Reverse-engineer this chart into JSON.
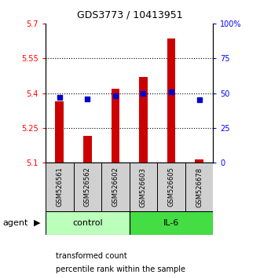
{
  "title": "GDS3773 / 10413951",
  "samples": [
    "GSM526561",
    "GSM526562",
    "GSM526602",
    "GSM526603",
    "GSM526605",
    "GSM526678"
  ],
  "bar_values": [
    5.365,
    5.215,
    5.42,
    5.47,
    5.635,
    5.115
  ],
  "bar_bottom": 5.1,
  "percentile_values": [
    47,
    46,
    48,
    50,
    51,
    45
  ],
  "ylim_left": [
    5.1,
    5.7
  ],
  "ylim_right": [
    0,
    100
  ],
  "yticks_left": [
    5.1,
    5.25,
    5.4,
    5.55,
    5.7
  ],
  "ytick_labels_left": [
    "5.1",
    "5.25",
    "5.4",
    "5.55",
    "5.7"
  ],
  "yticks_right": [
    0,
    25,
    50,
    75,
    100
  ],
  "ytick_labels_right": [
    "0",
    "25",
    "50",
    "75",
    "100%"
  ],
  "bar_color": "#cc0000",
  "square_color": "#0000cc",
  "group_labels": [
    "control",
    "IL-6"
  ],
  "group_colors": [
    "#bbffbb",
    "#44dd44"
  ],
  "group_ranges": [
    [
      0,
      3
    ],
    [
      3,
      6
    ]
  ],
  "legend_bar_label": "transformed count",
  "legend_sq_label": "percentile rank within the sample",
  "agent_label": "agent"
}
